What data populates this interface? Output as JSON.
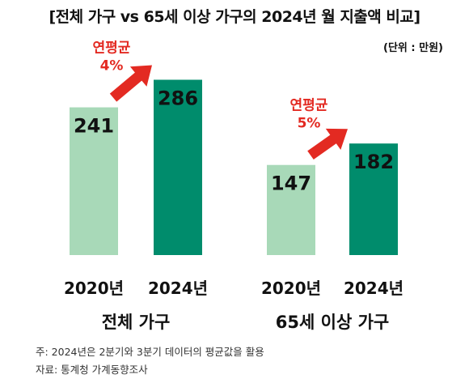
{
  "title": "[전체 가구 vs 65세 이상 가구의 2024년 월 지출액 비교]",
  "unit": "(단위 : 만원)",
  "colors": {
    "light": "#a8d9b8",
    "dark": "#008c6c",
    "arrow": "#e32a22"
  },
  "chart_data": [
    {
      "type": "bar",
      "group_label": "전체 가구",
      "categories": [
        "2020년",
        "2024년"
      ],
      "values": [
        241,
        286
      ],
      "growth_label": "연평균",
      "growth_value": "4%"
    },
    {
      "type": "bar",
      "group_label": "65세 이상 가구",
      "categories": [
        "2020년",
        "2024년"
      ],
      "values": [
        147,
        182
      ],
      "growth_label": "연평균",
      "growth_value": "5%"
    }
  ],
  "notes": [
    "주: 2024년은 2분기와 3분기 데이터의 평균값을 활용",
    "자료: 통계청 가계동향조사"
  ]
}
